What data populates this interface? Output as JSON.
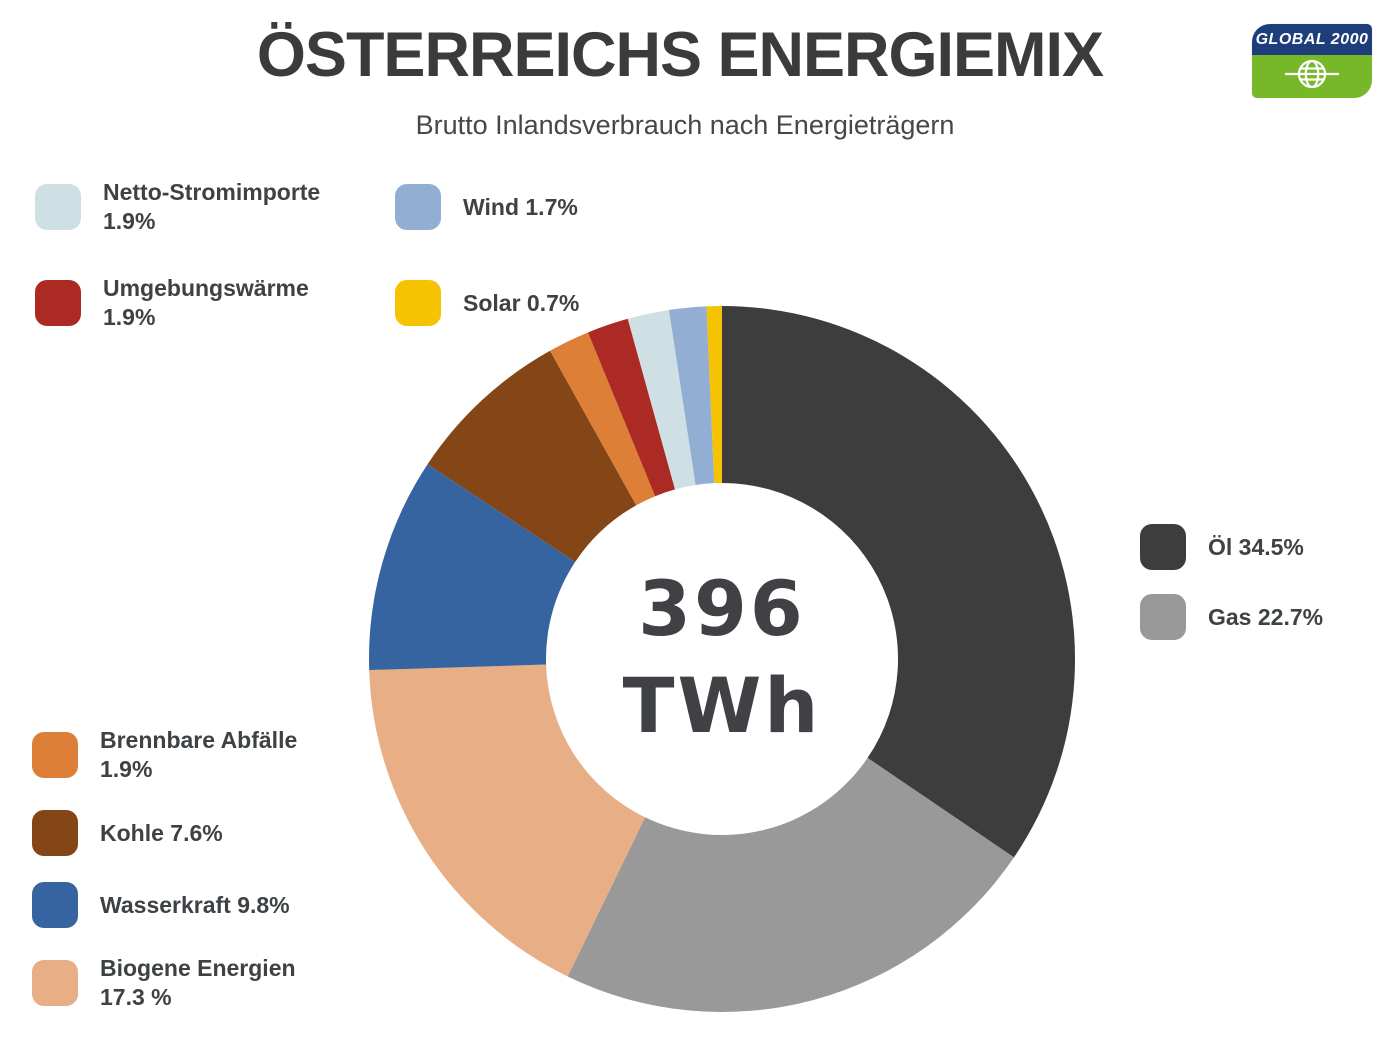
{
  "header": {
    "title": "ÖSTERREICHS ENERGIEMIX",
    "subtitle": "Brutto Inlandsverbrauch nach Energieträgern"
  },
  "logo": {
    "text": "GLOBAL 2000",
    "top_color": "#1d3e7b",
    "bottom_color": "#77b82a",
    "globe_icon": "globe-icon"
  },
  "chart_data": {
    "type": "pie",
    "donut": true,
    "title": "ÖSTERREICHS ENERGIEMIX",
    "subtitle": "Brutto Inlandsverbrauch nach Energieträgern",
    "center_label": {
      "value": "396",
      "unit": "TWh"
    },
    "start_angle_deg": -90,
    "direction": "clockwise",
    "unit": "percent",
    "segments": [
      {
        "id": "oel",
        "label": "Öl",
        "value": 34.5,
        "color": "#3d3d3d"
      },
      {
        "id": "gas",
        "label": "Gas",
        "value": 22.7,
        "color": "#999999"
      },
      {
        "id": "biogene",
        "label": "Biogene Energien",
        "value": 17.3,
        "color": "#e8ae85"
      },
      {
        "id": "wasserkraft",
        "label": "Wasserkraft",
        "value": 9.8,
        "color": "#3664a0"
      },
      {
        "id": "kohle",
        "label": "Kohle",
        "value": 7.6,
        "color": "#844517"
      },
      {
        "id": "abfaelle",
        "label": "Brennbare Abfälle",
        "value": 1.9,
        "color": "#dd7f36"
      },
      {
        "id": "umgebungswaerme",
        "label": "Umgebungswärme",
        "value": 1.9,
        "color": "#ab2b24"
      },
      {
        "id": "stromimporte",
        "label": "Netto-Stromimporte",
        "value": 1.9,
        "color": "#cfe0e5"
      },
      {
        "id": "wind",
        "label": "Wind",
        "value": 1.7,
        "color": "#92aed2"
      },
      {
        "id": "solar",
        "label": "Solar",
        "value": 0.7,
        "color": "#f6c302"
      }
    ],
    "legend_position": "around"
  },
  "legend": {
    "top_left": [
      {
        "seg": "stromimporte",
        "lines": [
          "Netto-Stromimporte",
          "1.9%"
        ]
      },
      {
        "seg": "wind",
        "lines": [
          "Wind 1.7%"
        ]
      },
      {
        "seg": "umgebungswaerme",
        "lines": [
          "Umgebungswärme",
          "1.9%"
        ]
      },
      {
        "seg": "solar",
        "lines": [
          "Solar 0.7%"
        ]
      }
    ],
    "right": [
      {
        "seg": "oel",
        "lines": [
          "Öl 34.5%"
        ]
      },
      {
        "seg": "gas",
        "lines": [
          "Gas 22.7%"
        ]
      }
    ],
    "bottom_left": [
      {
        "seg": "abfaelle",
        "lines": [
          "Brennbare Abfälle",
          "1.9%"
        ]
      },
      {
        "seg": "kohle",
        "lines": [
          "Kohle 7.6%"
        ]
      },
      {
        "seg": "wasserkraft",
        "lines": [
          "Wasserkraft 9.8%"
        ]
      },
      {
        "seg": "biogene",
        "lines": [
          "Biogene Energien",
          "17.3 %"
        ]
      }
    ]
  }
}
